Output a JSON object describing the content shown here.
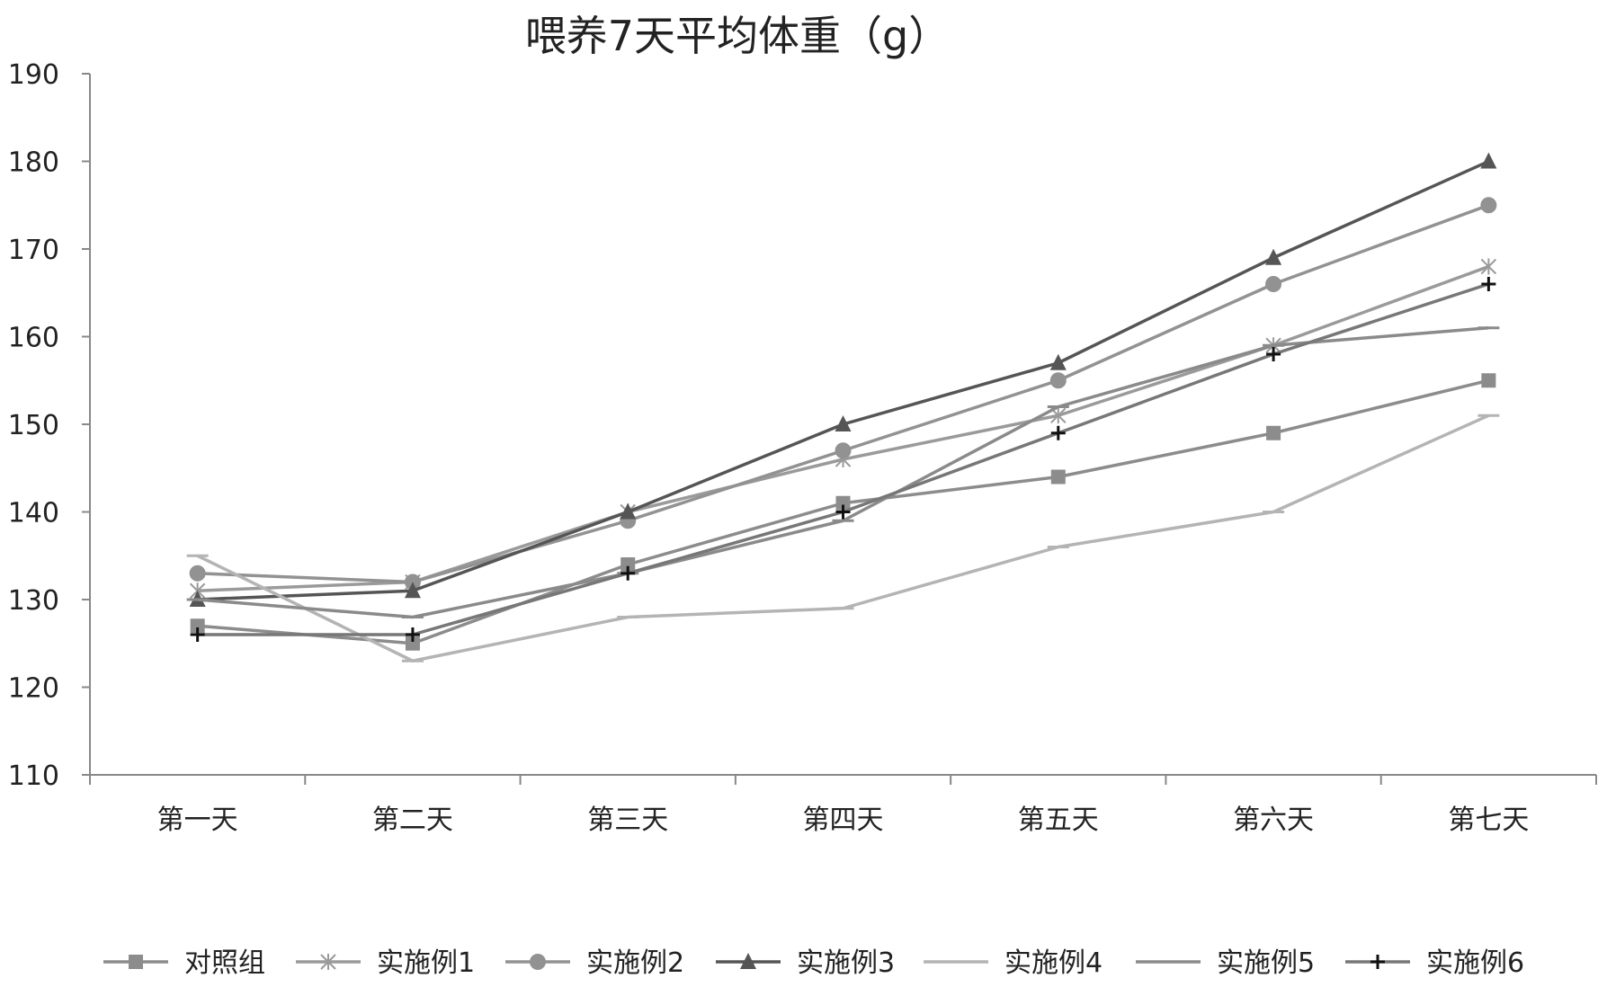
{
  "chart_data": {
    "type": "line",
    "title": "喂养7天平均体重（g）",
    "xlabel": "",
    "ylabel": "",
    "categories": [
      "第一天",
      "第二天",
      "第三天",
      "第四天",
      "第五天",
      "第六天",
      "第七天"
    ],
    "ylim": [
      110,
      190
    ],
    "yticks": [
      110,
      120,
      130,
      140,
      150,
      160,
      170,
      180,
      190
    ],
    "grid": false,
    "legend_position": "bottom",
    "series": [
      {
        "name": "对照组",
        "values": [
          127,
          125,
          134,
          141,
          144,
          149,
          155
        ],
        "color": "#8c8c8c",
        "marker": "square"
      },
      {
        "name": "实施例1",
        "values": [
          131,
          132,
          140,
          146,
          151,
          159,
          168
        ],
        "color": "#9a9a9a",
        "marker": "asterisk"
      },
      {
        "name": "实施例2",
        "values": [
          133,
          132,
          139,
          147,
          155,
          166,
          175
        ],
        "color": "#929292",
        "marker": "circle"
      },
      {
        "name": "实施例3",
        "values": [
          130,
          131,
          140,
          150,
          157,
          169,
          180
        ],
        "color": "#555555",
        "marker": "triangle"
      },
      {
        "name": "实施例4",
        "values": [
          135,
          123,
          128,
          129,
          136,
          140,
          151
        ],
        "color": "#b4b4b4",
        "marker": "dash"
      },
      {
        "name": "实施例5",
        "values": [
          130,
          128,
          133,
          139,
          152,
          159,
          161
        ],
        "color": "#8a8a8a",
        "marker": "dash"
      },
      {
        "name": "实施例6",
        "values": [
          126,
          126,
          133,
          140,
          149,
          158,
          166
        ],
        "color": "#777777",
        "marker": "plus"
      }
    ]
  }
}
